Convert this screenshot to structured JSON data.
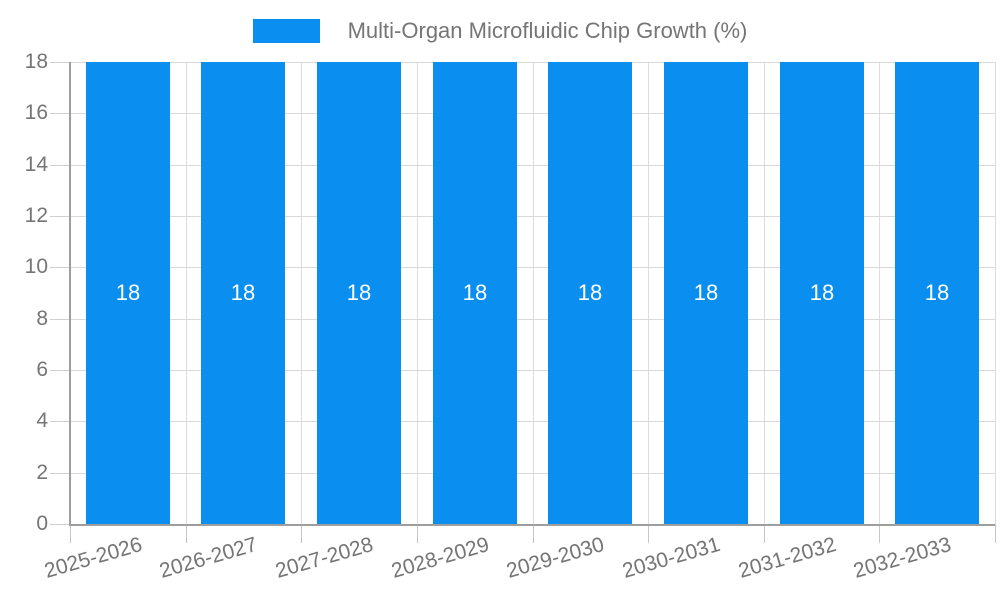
{
  "legend": {
    "label": "Multi-Organ Microfluidic Chip Growth (%)"
  },
  "chart_data": {
    "type": "bar",
    "title": "Multi-Organ Microfluidic Chip Growth (%)",
    "categories": [
      "2025-2026",
      "2026-2027",
      "2027-2028",
      "2028-2029",
      "2029-2030",
      "2030-2031",
      "2031-2032",
      "2032-2033"
    ],
    "values": [
      18,
      18,
      18,
      18,
      18,
      18,
      18,
      18
    ],
    "bar_labels": [
      "18",
      "18",
      "18",
      "18",
      "18",
      "18",
      "18",
      "18"
    ],
    "xlabel": "",
    "ylabel": "",
    "ylim": [
      0,
      18
    ],
    "yticks": [
      0,
      2,
      4,
      6,
      8,
      10,
      12,
      14,
      16,
      18
    ],
    "grid": true,
    "legend_position": "top-center",
    "bar_color": "#0a8ff0",
    "bar_label_color": "#ffffff",
    "axis_text_color": "#757575",
    "axis_line_color": "#9e9e9e",
    "gridline_color": "#d9d9d9"
  }
}
